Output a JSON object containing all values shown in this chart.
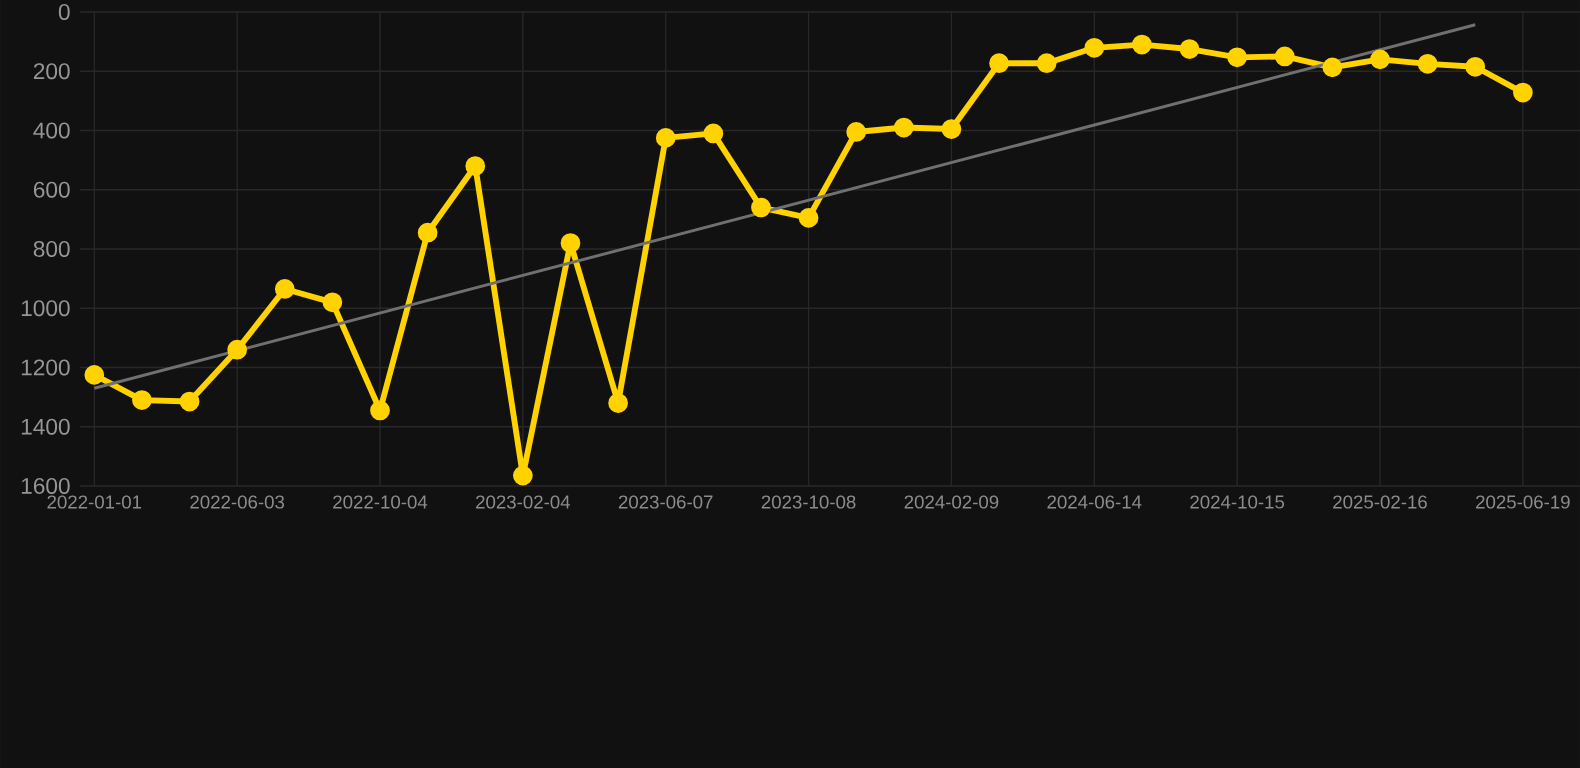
{
  "chart_data": {
    "type": "line",
    "categories": [
      "2022-01-01",
      null,
      null,
      "2022-06-03",
      null,
      null,
      "2022-10-04",
      null,
      null,
      "2023-02-04",
      null,
      null,
      "2023-06-07",
      null,
      null,
      "2023-10-08",
      null,
      null,
      "2024-02-09",
      null,
      null,
      "2024-06-14",
      null,
      null,
      "2024-10-15",
      null,
      null,
      "2025-02-16",
      null,
      null,
      "2025-06-19"
    ],
    "series": [
      {
        "color": "#ffd200",
        "marker": "circle",
        "values": [
          1225,
          1310,
          1315,
          1140,
          935,
          980,
          1345,
          745,
          520,
          1565,
          780,
          1320,
          425,
          410,
          660,
          695,
          405,
          390,
          395,
          173,
          173,
          121,
          110,
          125,
          153,
          150,
          187,
          160,
          175,
          185,
          272
        ]
      },
      {
        "type": "line",
        "color": "#707070",
        "marker": "none",
        "values": [
          1270,
          null,
          null,
          null,
          null,
          null,
          null,
          null,
          null,
          null,
          null,
          null,
          null,
          null,
          null,
          null,
          null,
          null,
          null,
          null,
          null,
          null,
          null,
          null,
          null,
          null,
          null,
          null,
          null,
          43,
          null
        ]
      }
    ],
    "ylim": [
      1600,
      0
    ],
    "yticks": [
      0,
      200,
      400,
      600,
      800,
      1000,
      1200,
      1400,
      1600
    ],
    "grid": true
  }
}
